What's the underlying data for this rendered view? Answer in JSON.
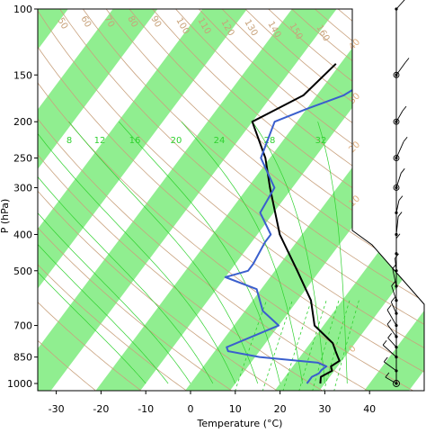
{
  "chart_data": {
    "type": "skew-t",
    "xlabel": "Temperature (°C)",
    "ylabel": "P (hPa)",
    "xlim": [
      -35,
      48
    ],
    "ylim": [
      1050,
      100
    ],
    "x_ticks": [
      -30,
      -20,
      -10,
      0,
      10,
      20,
      30,
      40
    ],
    "y_ticks": [
      100,
      150,
      200,
      250,
      300,
      400,
      500,
      700,
      850,
      1000
    ],
    "grid": true,
    "isotherm_band_color": "#90ee90",
    "mixing_ratio_labels": [
      "8",
      "12",
      "16",
      "20",
      "24",
      "28",
      "32"
    ],
    "mixing_ratio_values": [
      8,
      12,
      16,
      20,
      24,
      28,
      32
    ],
    "dry_adiabat_labels": [
      "50",
      "60",
      "70",
      "80",
      "90",
      "100",
      "110",
      "120",
      "130",
      "140",
      "150",
      "160"
    ],
    "moist_labels": [
      "40",
      "30",
      "20",
      "10",
      "0"
    ],
    "series": [
      {
        "color": "#000000",
        "p": [
          1000,
          960,
          925,
          900,
          870,
          850,
          820,
          780,
          700,
          600,
          500,
          400,
          300,
          250,
          200,
          170,
          140
        ],
        "t": [
          29,
          28,
          29.5,
          28.5,
          29.5,
          28.5,
          27,
          25,
          18,
          13,
          5,
          -5,
          -15,
          -21,
          -30,
          -23,
          -21
        ]
      },
      {
        "color": "#3a5fcd",
        "p": [
          1000,
          960,
          940,
          920,
          900,
          880,
          850,
          820,
          800,
          700,
          640,
          560,
          520,
          500,
          480,
          420,
          400,
          350,
          300,
          250,
          200,
          185,
          170,
          155,
          140
        ],
        "t": [
          26,
          26,
          27,
          27,
          27.5,
          25,
          11,
          3,
          2,
          10,
          4,
          -1,
          -10,
          -6,
          -6,
          -7,
          -7,
          -13,
          -14,
          -22,
          -25,
          -20,
          -14,
          -11,
          -10
        ]
      }
    ],
    "wind_levels": [
      1000,
      925,
      850,
      800,
      750,
      700,
      650,
      600,
      550,
      500,
      450,
      400,
      350,
      300,
      250,
      200,
      150,
      100
    ]
  }
}
